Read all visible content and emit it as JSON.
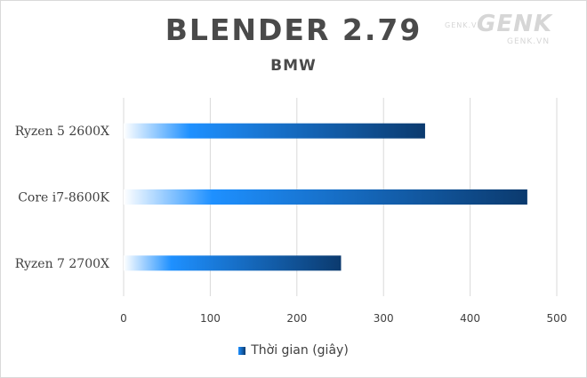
{
  "chart_data": {
    "type": "bar",
    "orientation": "horizontal",
    "title": "BLENDER 2.79",
    "subtitle": "BMW",
    "categories": [
      "Ryzen 5 2600X",
      "Core i7-8600K",
      "Ryzen 7 2700X"
    ],
    "series": [
      {
        "name": "Thời gian (giây)",
        "values": [
          348,
          466,
          251
        ]
      }
    ],
    "xlim": [
      0,
      500
    ],
    "xticks": [
      "0",
      "100",
      "200",
      "300",
      "400",
      "500"
    ],
    "grid": true,
    "legend_position": "bottom",
    "colors": {
      "bar_start": "#ffffff",
      "bar_mid": "#1e90ff",
      "bar_end": "#0b3a6e",
      "grid": "#d9d9d9",
      "text": "#404040"
    }
  },
  "watermark": {
    "small": "GENK.VN",
    "big": "GENK",
    "sub": "GENK.VN"
  }
}
